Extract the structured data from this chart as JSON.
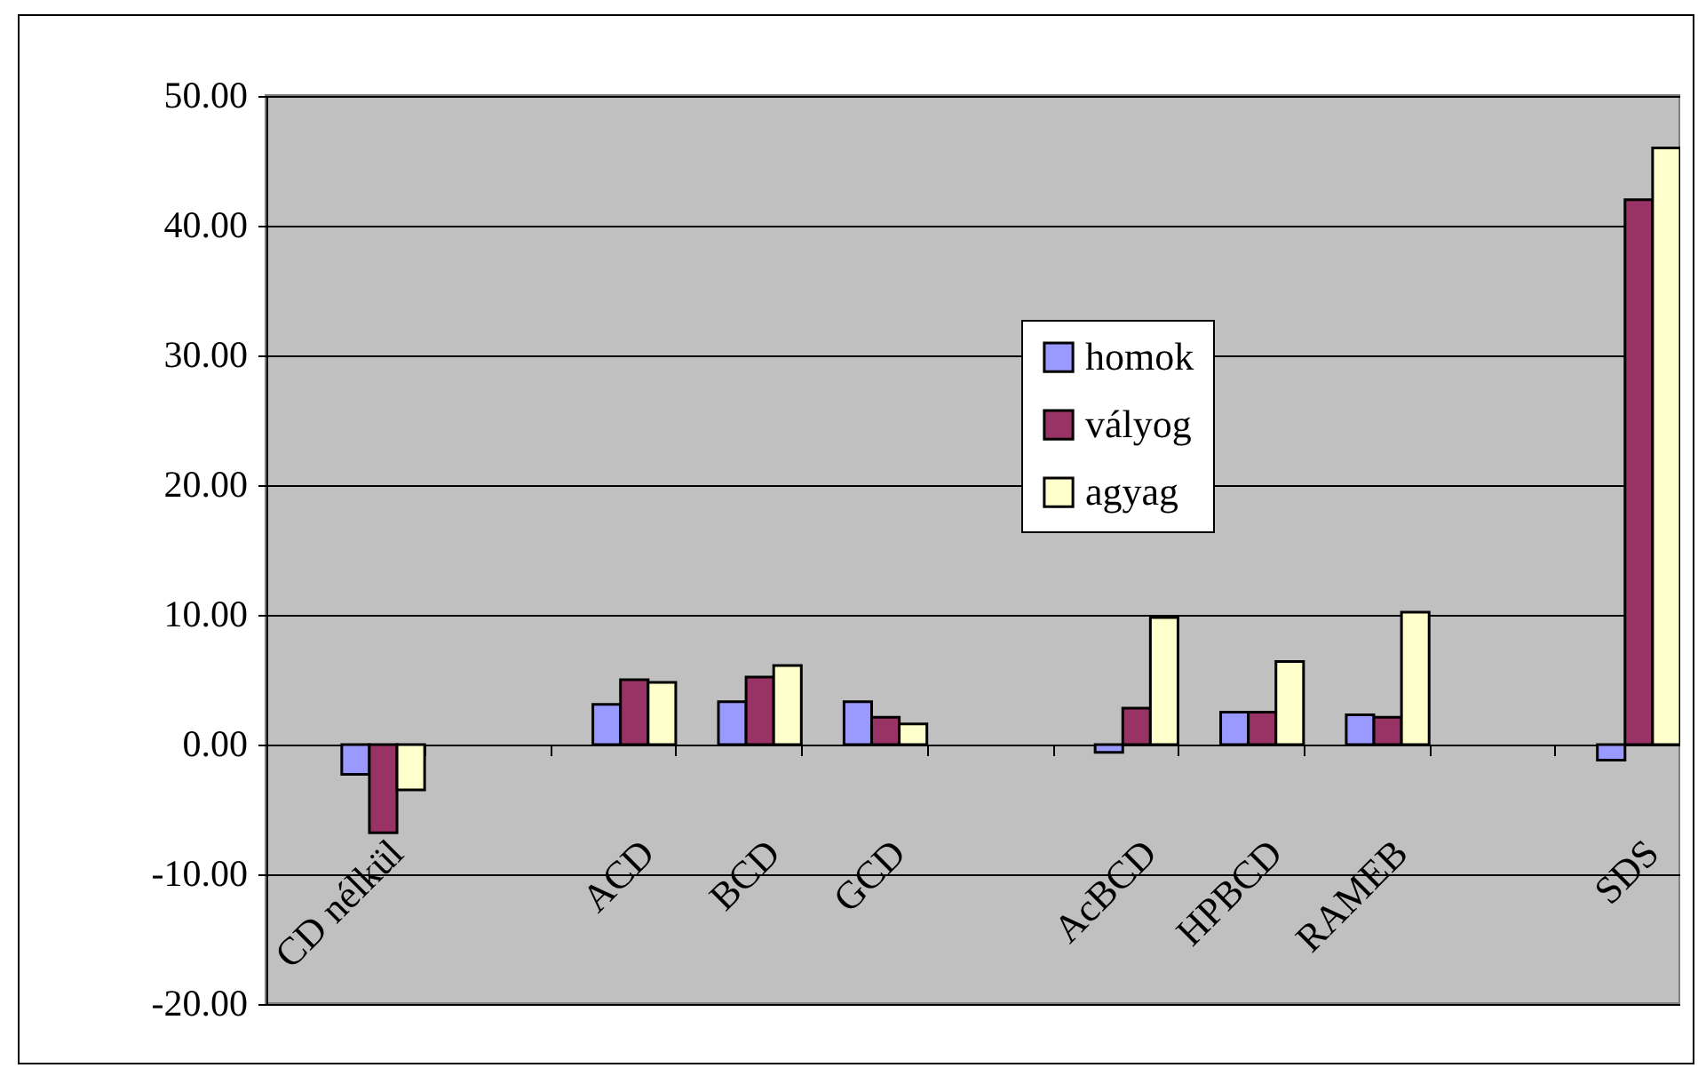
{
  "chart_data": {
    "type": "bar",
    "categories": [
      "CD nélkül",
      null,
      "ACD",
      "BCD",
      "GCD",
      null,
      "AcBCD",
      "HPBCD",
      "RAMEB",
      null,
      "SDS"
    ],
    "series": [
      {
        "name": "homok",
        "color": "#9999ff",
        "values": [
          -2.3,
          null,
          3.1,
          3.3,
          3.3,
          null,
          -0.6,
          2.5,
          2.3,
          null,
          -1.2
        ]
      },
      {
        "name": "vályog",
        "color": "#993366",
        "values": [
          -6.8,
          null,
          5.0,
          5.2,
          2.1,
          null,
          2.8,
          2.5,
          2.1,
          null,
          42.0
        ]
      },
      {
        "name": "agyag",
        "color": "#ffffcc",
        "values": [
          -3.5,
          null,
          4.8,
          6.1,
          1.6,
          null,
          9.8,
          6.4,
          10.2,
          null,
          46.0
        ]
      }
    ],
    "ylim": [
      -20,
      50
    ],
    "yticks": [
      {
        "value": -20,
        "label": "-20.00"
      },
      {
        "value": -10,
        "label": "-10.00"
      },
      {
        "value": 0,
        "label": "0.00"
      },
      {
        "value": 10,
        "label": "10.00"
      },
      {
        "value": 20,
        "label": "20.00"
      },
      {
        "value": 30,
        "label": "30.00"
      },
      {
        "value": 40,
        "label": "40.00"
      },
      {
        "value": 50,
        "label": "50.00"
      }
    ],
    "grid": "y",
    "legend": "top right"
  }
}
